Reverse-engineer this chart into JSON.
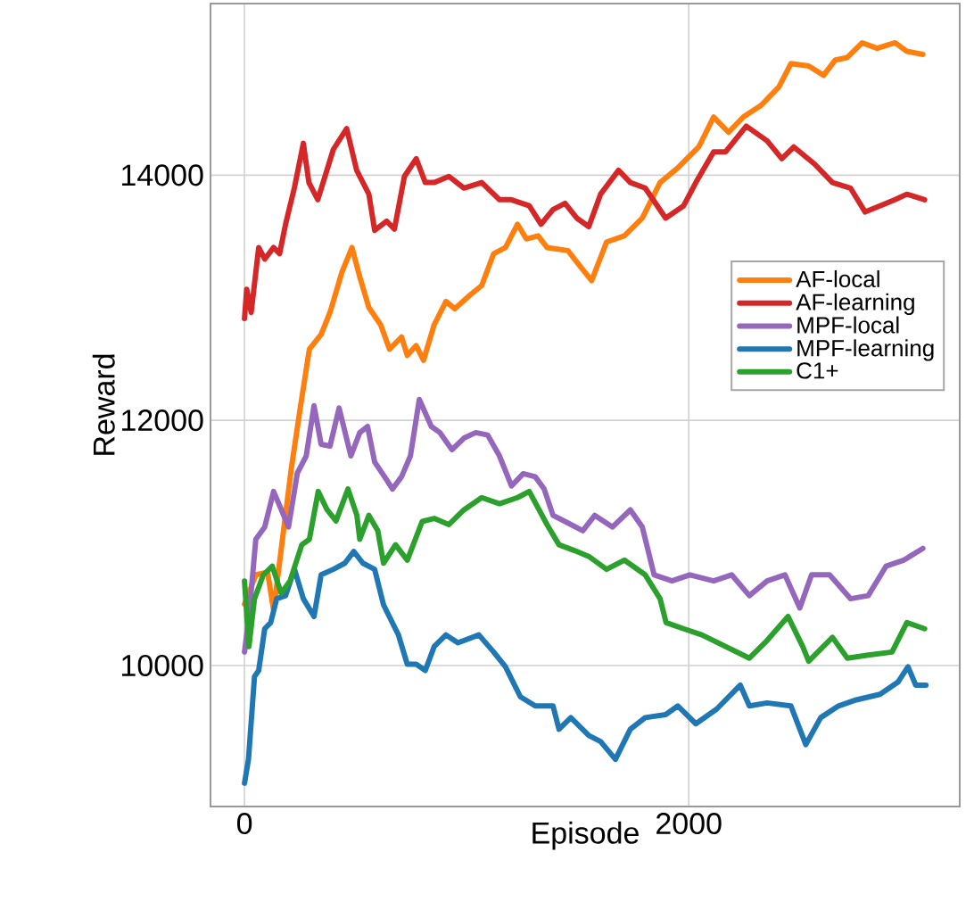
{
  "chart_data": {
    "type": "line",
    "xlabel": "Episode",
    "ylabel": "Reward",
    "xlim": [
      -153,
      3220
    ],
    "ylim": [
      8850,
      15400
    ],
    "xticks": [
      0,
      2000
    ],
    "yticks": [
      10000,
      12000,
      14000
    ],
    "grid": true,
    "legend": "right",
    "marker": "none",
    "line_style": "solid",
    "series": [
      {
        "name": "AF-local",
        "color": "#ff7f0e",
        "x": [
          0,
          51,
          104,
          131,
          171,
          211,
          251,
          292,
          345,
          385,
          439,
          484,
          519,
          560,
          613,
          653,
          707,
          733,
          773,
          806,
          854,
          907,
          947,
          1014,
          1068,
          1122,
          1175,
          1229,
          1269,
          1322,
          1362,
          1456,
          1510,
          1563,
          1630,
          1710,
          1791,
          1871,
          1951,
          2045,
          2112,
          2179,
          2246,
          2326,
          2406,
          2460,
          2540,
          2607,
          2660,
          2714,
          2781,
          2848,
          2929,
          2982,
          3054
        ],
        "values": [
          10500,
          10740,
          10760,
          10450,
          11030,
          11610,
          12100,
          12580,
          12700,
          12880,
          13210,
          13410,
          13170,
          12920,
          12780,
          12580,
          12680,
          12530,
          12610,
          12490,
          12780,
          12970,
          12910,
          13020,
          13100,
          13360,
          13410,
          13600,
          13480,
          13505,
          13410,
          13385,
          13260,
          13140,
          13455,
          13505,
          13650,
          13940,
          14060,
          14230,
          14475,
          14350,
          14475,
          14570,
          14720,
          14910,
          14890,
          14815,
          14940,
          14960,
          15080,
          15035,
          15080,
          15010,
          14985
        ]
      },
      {
        "name": "AF-learning",
        "color": "#d62728",
        "x": [
          0,
          10,
          30,
          64,
          91,
          131,
          158,
          185,
          225,
          265,
          290,
          330,
          400,
          460,
          505,
          560,
          586,
          640,
          675,
          720,
          773,
          814,
          855,
          920,
          988,
          1068,
          1148,
          1201,
          1282,
          1335,
          1389,
          1443,
          1496,
          1550,
          1603,
          1684,
          1737,
          1804,
          1896,
          1977,
          2032,
          2112,
          2166,
          2259,
          2353,
          2419,
          2473,
          2567,
          2647,
          2728,
          2794,
          2861,
          2929,
          2982,
          3062
        ],
        "values": [
          12830,
          13070,
          12880,
          13410,
          13315,
          13410,
          13360,
          13600,
          13900,
          14260,
          13940,
          13800,
          14210,
          14380,
          14040,
          13845,
          13550,
          13625,
          13560,
          13990,
          14135,
          13940,
          13940,
          13990,
          13895,
          13940,
          13800,
          13800,
          13750,
          13600,
          13720,
          13770,
          13650,
          13580,
          13845,
          14040,
          13940,
          13895,
          13650,
          13750,
          13940,
          14190,
          14190,
          14400,
          14280,
          14135,
          14230,
          14090,
          13940,
          13895,
          13700,
          13750,
          13800,
          13845,
          13800
        ]
      },
      {
        "name": "MPF-local",
        "color": "#9467bd",
        "x": [
          0,
          20,
          51,
          91,
          131,
          171,
          198,
          238,
          278,
          313,
          345,
          385,
          426,
          479,
          519,
          554,
          586,
          640,
          666,
          707,
          747,
          787,
          841,
          880,
          934,
          988,
          1041,
          1095,
          1148,
          1202,
          1255,
          1309,
          1349,
          1389,
          1443,
          1523,
          1577,
          1657,
          1737,
          1791,
          1844,
          1925,
          2005,
          2112,
          2193,
          2273,
          2353,
          2433,
          2500,
          2553,
          2634,
          2728,
          2808,
          2888,
          2968,
          3054
        ],
        "values": [
          10110,
          10400,
          11030,
          11130,
          11420,
          11250,
          11130,
          11570,
          11710,
          12120,
          11805,
          11790,
          12100,
          11710,
          11900,
          11950,
          11660,
          11515,
          11440,
          11540,
          11710,
          12170,
          11950,
          11900,
          11760,
          11855,
          11900,
          11880,
          11710,
          11465,
          11565,
          11540,
          11440,
          11225,
          11175,
          11100,
          11225,
          11130,
          11270,
          11130,
          10740,
          10690,
          10740,
          10690,
          10740,
          10570,
          10690,
          10740,
          10470,
          10740,
          10740,
          10545,
          10570,
          10810,
          10860,
          10955
        ]
      },
      {
        "name": "MPF-learning",
        "color": "#1f77b4",
        "x": [
          0,
          18,
          45,
          64,
          91,
          118,
          145,
          185,
          225,
          265,
          313,
          345,
          400,
          452,
          492,
          533,
          586,
          626,
          693,
          733,
          773,
          814,
          854,
          907,
          961,
          1055,
          1122,
          1175,
          1242,
          1309,
          1389,
          1416,
          1469,
          1550,
          1603,
          1670,
          1737,
          1804,
          1896,
          1951,
          2032,
          2126,
          2232,
          2273,
          2353,
          2460,
          2527,
          2594,
          2674,
          2754,
          2861,
          2942,
          2987,
          3022,
          3068
        ],
        "values": [
          9040,
          9235,
          9910,
          9960,
          10300,
          10350,
          10545,
          10570,
          10785,
          10545,
          10400,
          10740,
          10785,
          10835,
          10930,
          10835,
          10785,
          10495,
          10250,
          10010,
          10010,
          9960,
          10155,
          10250,
          10185,
          10250,
          10110,
          9990,
          9745,
          9670,
          9670,
          9480,
          9575,
          9430,
          9380,
          9235,
          9480,
          9575,
          9600,
          9670,
          9525,
          9645,
          9840,
          9670,
          9695,
          9670,
          9355,
          9575,
          9670,
          9720,
          9765,
          9865,
          9990,
          9840,
          9840
        ]
      },
      {
        "name": "C1+",
        "color": "#2ca02c",
        "x": [
          0,
          20,
          45,
          85,
          125,
          165,
          205,
          258,
          292,
          332,
          372,
          412,
          466,
          506,
          519,
          560,
          600,
          626,
          680,
          733,
          800,
          854,
          920,
          988,
          1068,
          1148,
          1229,
          1282,
          1362,
          1416,
          1483,
          1550,
          1630,
          1710,
          1804,
          1871,
          1898,
          1977,
          2059,
          2166,
          2273,
          2353,
          2447,
          2513,
          2540,
          2647,
          2714,
          2808,
          2915,
          2982,
          3062
        ],
        "values": [
          10690,
          10155,
          10545,
          10740,
          10810,
          10590,
          10690,
          10985,
          11030,
          11420,
          11270,
          11180,
          11440,
          11225,
          11030,
          11225,
          11100,
          10835,
          10985,
          10860,
          11175,
          11200,
          11150,
          11270,
          11370,
          11320,
          11370,
          11420,
          11150,
          10985,
          10940,
          10890,
          10785,
          10860,
          10740,
          10545,
          10350,
          10300,
          10250,
          10155,
          10060,
          10205,
          10400,
          10155,
          10035,
          10230,
          10060,
          10085,
          10110,
          10350,
          10300
        ]
      }
    ]
  }
}
